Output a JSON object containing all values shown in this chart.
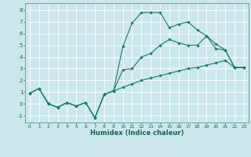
{
  "xlabel": "Humidex (Indice chaleur)",
  "bg_color": "#cce8ec",
  "grid_color": "#ffffff",
  "line_color": "#1a7a6e",
  "xlim": [
    -0.5,
    23.5
  ],
  "ylim": [
    -1.6,
    8.6
  ],
  "xticks": [
    0,
    1,
    2,
    3,
    4,
    5,
    6,
    7,
    8,
    9,
    10,
    11,
    12,
    13,
    14,
    15,
    16,
    17,
    18,
    19,
    20,
    21,
    22,
    23
  ],
  "yticks": [
    -1,
    0,
    1,
    2,
    3,
    4,
    5,
    6,
    7,
    8
  ],
  "series1_x": [
    0,
    1,
    2,
    3,
    4,
    5,
    6,
    7,
    8,
    9,
    10,
    11,
    12,
    13,
    14,
    15,
    16,
    17,
    18,
    19,
    20,
    21,
    22,
    23
  ],
  "series1_y": [
    0.9,
    1.3,
    0.0,
    -0.3,
    0.1,
    -0.2,
    0.1,
    -1.2,
    0.8,
    1.1,
    1.4,
    1.7,
    2.0,
    2.2,
    2.4,
    2.6,
    2.8,
    3.0,
    3.1,
    3.3,
    3.5,
    3.7,
    3.1,
    3.1
  ],
  "series2_x": [
    0,
    1,
    2,
    3,
    4,
    5,
    6,
    7,
    8,
    9,
    10,
    11,
    12,
    13,
    14,
    15,
    16,
    17,
    18,
    19,
    20,
    21,
    22,
    23
  ],
  "series2_y": [
    0.9,
    1.3,
    0.0,
    -0.3,
    0.1,
    -0.2,
    0.1,
    -1.2,
    0.8,
    1.1,
    4.9,
    6.9,
    7.8,
    7.8,
    7.8,
    6.5,
    6.8,
    7.0,
    6.3,
    5.8,
    4.7,
    4.6,
    3.1,
    3.1
  ],
  "series3_x": [
    0,
    1,
    2,
    3,
    4,
    5,
    6,
    7,
    8,
    9,
    10,
    11,
    12,
    13,
    14,
    15,
    16,
    17,
    18,
    19,
    20,
    21,
    22,
    23
  ],
  "series3_y": [
    0.9,
    1.3,
    0.0,
    -0.3,
    0.1,
    -0.2,
    0.1,
    -1.2,
    0.8,
    1.1,
    2.9,
    3.0,
    4.0,
    4.3,
    5.0,
    5.5,
    5.2,
    5.0,
    5.0,
    5.8,
    5.1,
    4.6,
    3.1,
    3.1
  ]
}
